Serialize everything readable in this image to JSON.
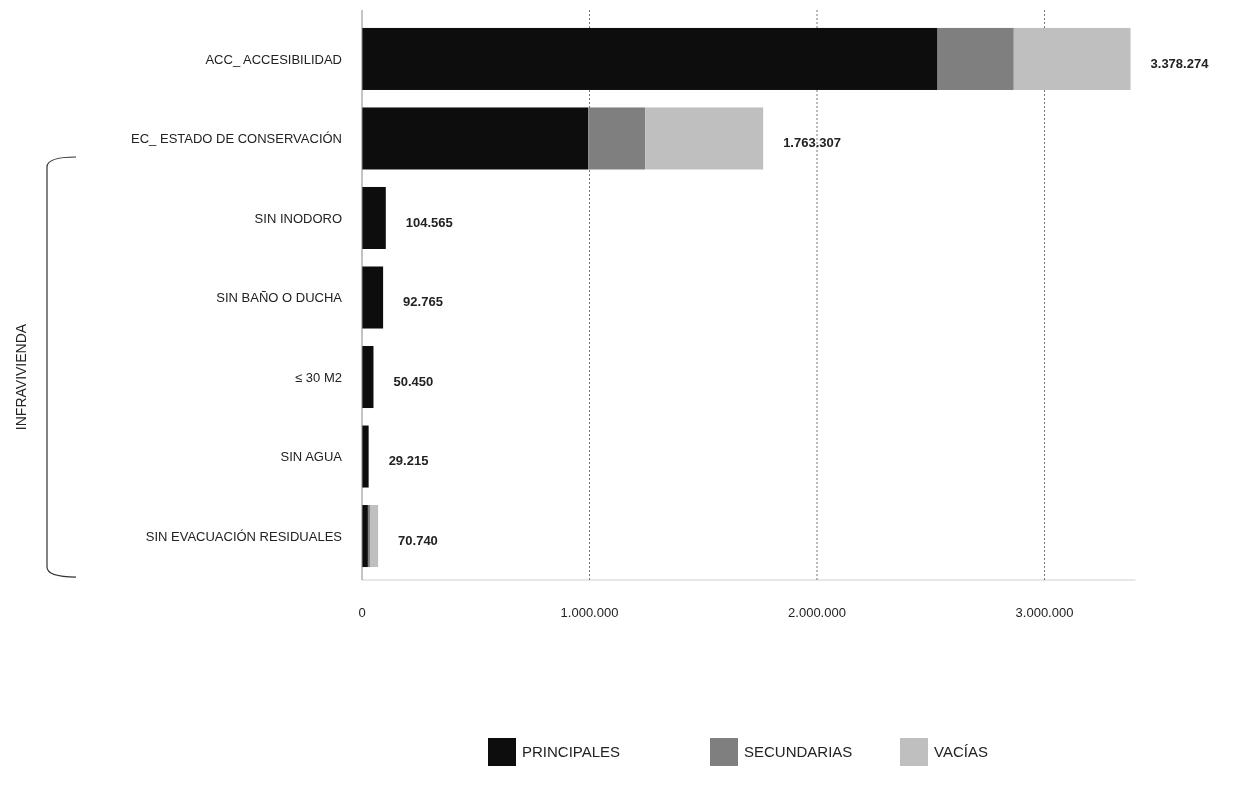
{
  "chart_data": {
    "type": "bar",
    "orientation": "horizontal",
    "stacked": true,
    "categories": [
      "ACC_ ACCESIBILIDAD",
      "EC_ ESTADO DE CONSERVACIÓN",
      "SIN INODORO",
      "SIN BAÑO O DUCHA",
      "≤ 30 M2",
      "SIN AGUA",
      "SIN EVACUACIÓN RESIDUALES"
    ],
    "series": [
      {
        "name": "PRINCIPALES",
        "color": "#0d0d0d",
        "values": [
          2530000,
          995000,
          104565,
          92765,
          50450,
          29215,
          26000
        ]
      },
      {
        "name": "SECUNDARIAS",
        "color": "#7f7f7f",
        "values": [
          335000,
          250000,
          0,
          0,
          0,
          0,
          9000
        ]
      },
      {
        "name": "VACÍAS",
        "color": "#bfbfbf",
        "values": [
          513274,
          518307,
          0,
          0,
          0,
          0,
          35740
        ]
      }
    ],
    "totals": [
      "3.378.274",
      "1.763.307",
      "104.565",
      "92.765",
      "50.450",
      "29.215",
      "70.740"
    ],
    "xlim": [
      0,
      3400000
    ],
    "xticks": [
      {
        "value": 0,
        "label": "0"
      },
      {
        "value": 1000000,
        "label": "1.000.000"
      },
      {
        "value": 2000000,
        "label": "2.000.000"
      },
      {
        "value": 3000000,
        "label": "3.000.000"
      }
    ],
    "grid": "x",
    "legend": "bottom",
    "annotations": [
      "INFRAVIVIENDA"
    ]
  }
}
